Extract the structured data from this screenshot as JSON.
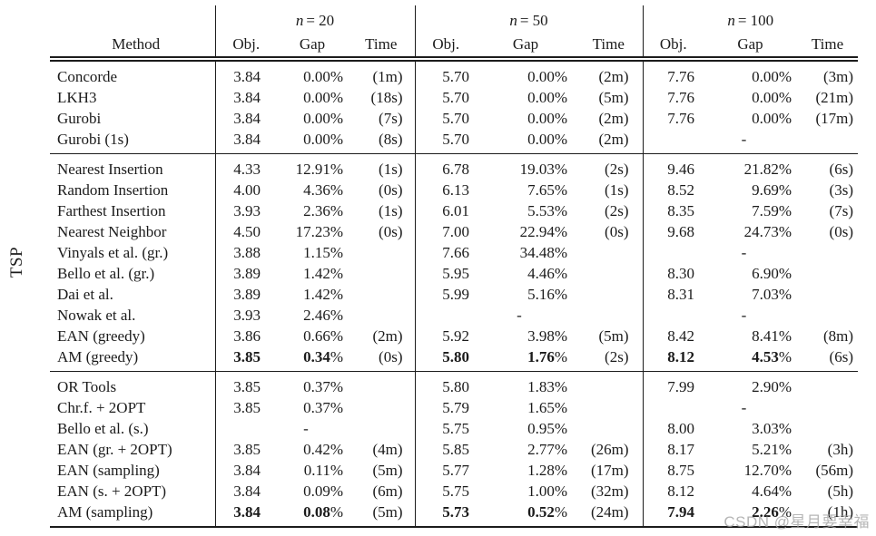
{
  "table": {
    "side_label": "TSP",
    "header": {
      "method": "Method",
      "obj": "Obj.",
      "gap": "Gap",
      "time": "Time",
      "groups": [
        {
          "var": "n",
          "eq": "= 20"
        },
        {
          "var": "n",
          "eq": "= 50"
        },
        {
          "var": "n",
          "eq": "= 100"
        }
      ]
    },
    "blocks": [
      {
        "rows": [
          {
            "method": "Concorde",
            "cells": [
              "3.84",
              "0.00%",
              "(1m)",
              "5.70",
              "0.00%",
              "(2m)",
              "7.76",
              "0.00%",
              "(3m)"
            ]
          },
          {
            "method": "LKH3",
            "cells": [
              "3.84",
              "0.00%",
              "(18s)",
              "5.70",
              "0.00%",
              "(5m)",
              "7.76",
              "0.00%",
              "(21m)"
            ]
          },
          {
            "method": "Gurobi",
            "cells": [
              "3.84",
              "0.00%",
              "(7s)",
              "5.70",
              "0.00%",
              "(2m)",
              "7.76",
              "0.00%",
              "(17m)"
            ]
          },
          {
            "method": "Gurobi (1s)",
            "cells": [
              "3.84",
              "0.00%",
              "(8s)",
              "5.70",
              "0.00%",
              "(2m)",
              "",
              "-",
              ""
            ]
          }
        ]
      },
      {
        "rows": [
          {
            "method": "Nearest Insertion",
            "cells": [
              "4.33",
              "12.91%",
              "(1s)",
              "6.78",
              "19.03%",
              "(2s)",
              "9.46",
              "21.82%",
              "(6s)"
            ]
          },
          {
            "method": "Random Insertion",
            "cells": [
              "4.00",
              "4.36%",
              "(0s)",
              "6.13",
              "7.65%",
              "(1s)",
              "8.52",
              "9.69%",
              "(3s)"
            ]
          },
          {
            "method": "Farthest Insertion",
            "cells": [
              "3.93",
              "2.36%",
              "(1s)",
              "6.01",
              "5.53%",
              "(2s)",
              "8.35",
              "7.59%",
              "(7s)"
            ]
          },
          {
            "method": "Nearest Neighbor",
            "cells": [
              "4.50",
              "17.23%",
              "(0s)",
              "7.00",
              "22.94%",
              "(0s)",
              "9.68",
              "24.73%",
              "(0s)"
            ]
          },
          {
            "method": "Vinyals et al. (gr.)",
            "cells": [
              "3.88",
              "1.15%",
              "",
              "7.66",
              "34.48%",
              "",
              "",
              "-",
              ""
            ]
          },
          {
            "method": "Bello et al. (gr.)",
            "cells": [
              "3.89",
              "1.42%",
              "",
              "5.95",
              "4.46%",
              "",
              "8.30",
              "6.90%",
              ""
            ]
          },
          {
            "method": "Dai et al.",
            "cells": [
              "3.89",
              "1.42%",
              "",
              "5.99",
              "5.16%",
              "",
              "8.31",
              "7.03%",
              ""
            ]
          },
          {
            "method": "Nowak et al.",
            "cells": [
              "3.93",
              "2.46%",
              "",
              "",
              "-",
              "",
              "",
              "-",
              ""
            ]
          },
          {
            "method": "EAN (greedy)",
            "cells": [
              "3.86",
              "0.66%",
              "(2m)",
              "5.92",
              "3.98%",
              "(5m)",
              "8.42",
              "8.41%",
              "(8m)"
            ]
          },
          {
            "method": "AM (greedy)",
            "bold": true,
            "cells": [
              "3.85",
              "0.34%",
              "(0s)",
              "5.80",
              "1.76%",
              "(2s)",
              "8.12",
              "4.53%",
              "(6s)"
            ]
          }
        ]
      },
      {
        "rows": [
          {
            "method": "OR Tools",
            "cells": [
              "3.85",
              "0.37%",
              "",
              "5.80",
              "1.83%",
              "",
              "7.99",
              "2.90%",
              ""
            ]
          },
          {
            "method": "Chr.f. + 2OPT",
            "cells": [
              "3.85",
              "0.37%",
              "",
              "5.79",
              "1.65%",
              "",
              "",
              "-",
              ""
            ]
          },
          {
            "method": "Bello et al. (s.)",
            "cells": [
              "",
              "-",
              "",
              "5.75",
              "0.95%",
              "",
              "8.00",
              "3.03%",
              ""
            ]
          },
          {
            "method": "EAN (gr. + 2OPT)",
            "cells": [
              "3.85",
              "0.42%",
              "(4m)",
              "5.85",
              "2.77%",
              "(26m)",
              "8.17",
              "5.21%",
              "(3h)"
            ]
          },
          {
            "method": "EAN (sampling)",
            "cells": [
              "3.84",
              "0.11%",
              "(5m)",
              "5.77",
              "1.28%",
              "(17m)",
              "8.75",
              "12.70%",
              "(56m)"
            ]
          },
          {
            "method": "EAN (s. + 2OPT)",
            "cells": [
              "3.84",
              "0.09%",
              "(6m)",
              "5.75",
              "1.00%",
              "(32m)",
              "8.12",
              "4.64%",
              "(5h)"
            ]
          },
          {
            "method": "AM (sampling)",
            "bold": true,
            "cells": [
              "3.84",
              "0.08%",
              "(5m)",
              "5.73",
              "0.52%",
              "(24m)",
              "7.94",
              "2.26%",
              "(1h)"
            ]
          }
        ]
      }
    ]
  },
  "watermark": "CSDN @星月要幸福"
}
